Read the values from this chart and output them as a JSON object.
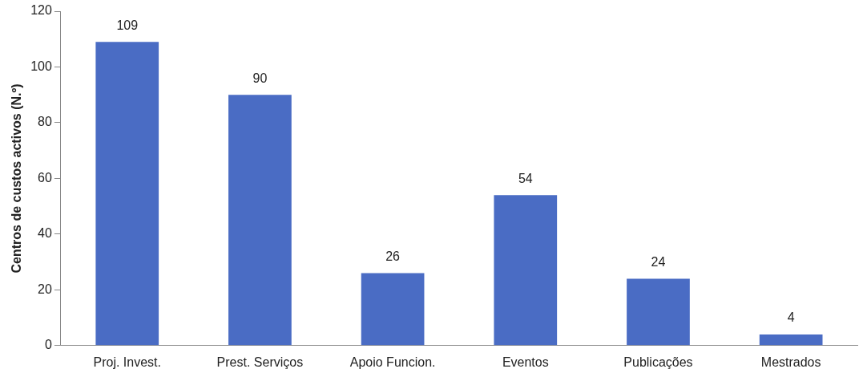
{
  "chart_data": {
    "type": "bar",
    "ylabel": "Centros de custos activos (N.º)",
    "categories": [
      "Proj. Invest.",
      "Prest. Serviços",
      "Apoio Funcion.",
      "Eventos",
      "Publicações",
      "Mestrados"
    ],
    "values": [
      109,
      90,
      26,
      54,
      24,
      4
    ],
    "color": "#4a6cc4",
    "ylim": [
      0,
      120
    ],
    "yticks": [
      0,
      20,
      40,
      60,
      80,
      100,
      120
    ],
    "grid": false,
    "data_labels": true,
    "legend": false
  }
}
